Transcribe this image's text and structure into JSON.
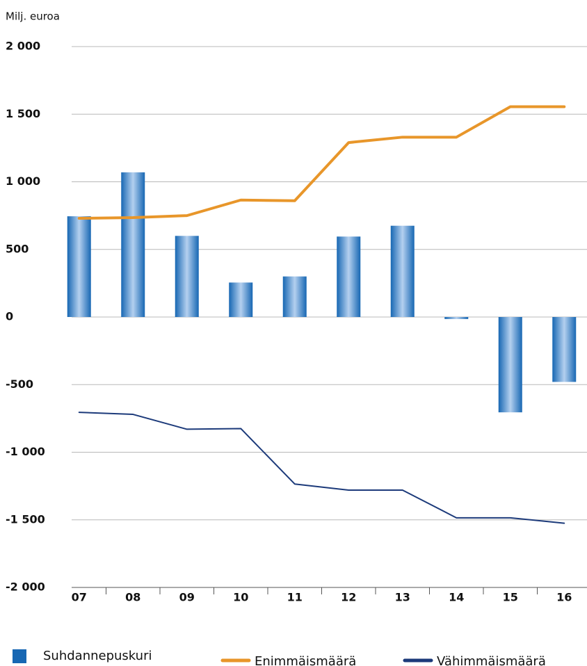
{
  "chart_data": {
    "type": "bar",
    "y_label": "Milj. euroa",
    "categories": [
      "07",
      "08",
      "09",
      "10",
      "11",
      "12",
      "13",
      "14",
      "15",
      "16"
    ],
    "series": [
      {
        "name": "Suhdannepuskuri",
        "type": "bar",
        "color": "#1767b3",
        "values": [
          745,
          1070,
          600,
          255,
          300,
          595,
          675,
          -15,
          -705,
          -480
        ]
      },
      {
        "name": "Enimmäismäärä",
        "type": "line",
        "color": "#e8962a",
        "values": [
          730,
          735,
          750,
          865,
          860,
          1290,
          1330,
          1330,
          1555,
          1555
        ]
      },
      {
        "name": "Vähimmäismäärä",
        "type": "line",
        "color": "#1c3a7a",
        "values": [
          -705,
          -720,
          -830,
          -825,
          -1235,
          -1280,
          -1280,
          -1485,
          -1485,
          -1525
        ]
      }
    ],
    "ylim": [
      -2000,
      2000
    ],
    "yticks": [
      {
        "value": -2000,
        "label": "-2 000"
      },
      {
        "value": -1500,
        "label": "-1 500"
      },
      {
        "value": -1000,
        "label": "-1 000"
      },
      -500,
      0,
      500,
      {
        "value": 1000,
        "label": "1 000"
      },
      {
        "value": 1500,
        "label": "1 500"
      },
      {
        "value": 2000,
        "label": "2 000"
      }
    ],
    "grid": true
  }
}
